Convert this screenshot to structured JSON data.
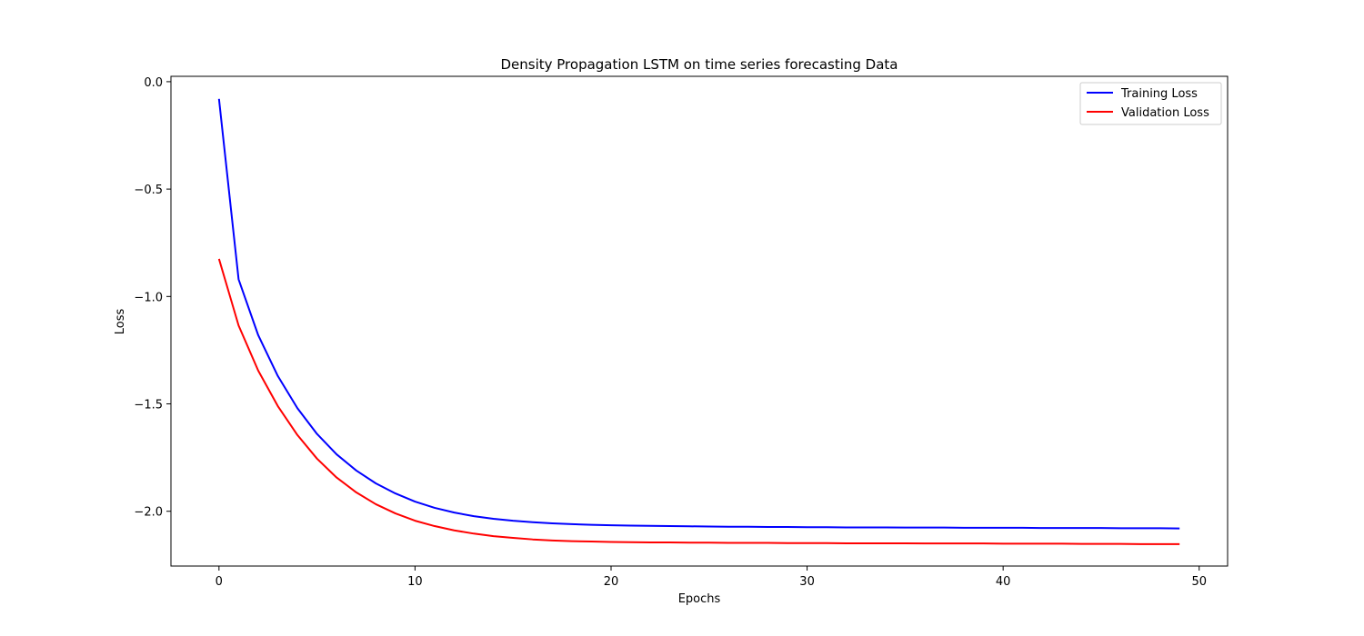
{
  "chart_data": {
    "type": "line",
    "title": "Density Propagation LSTM on time series forecasting Data",
    "xlabel": "Epochs",
    "ylabel": "Loss",
    "xlim": [
      -2.45,
      51.45
    ],
    "ylim": [
      -2.255,
      0.025
    ],
    "xticks": [
      0,
      10,
      20,
      30,
      40,
      50
    ],
    "yticks": [
      0.0,
      -0.5,
      -1.0,
      -1.5,
      -2.0
    ],
    "xtick_labels": [
      "0",
      "10",
      "20",
      "30",
      "40",
      "50"
    ],
    "ytick_labels": [
      "0.0",
      "−0.5",
      "−1.0",
      "−1.5",
      "−2.0"
    ],
    "grid": false,
    "legend_position": "top-right",
    "x": [
      0,
      1,
      2,
      3,
      4,
      5,
      6,
      7,
      8,
      9,
      10,
      11,
      12,
      13,
      14,
      15,
      16,
      17,
      18,
      19,
      20,
      21,
      22,
      23,
      24,
      25,
      26,
      27,
      28,
      29,
      30,
      31,
      32,
      33,
      34,
      35,
      36,
      37,
      38,
      39,
      40,
      41,
      42,
      43,
      44,
      45,
      46,
      47,
      48,
      49
    ],
    "series": [
      {
        "name": "Training Loss",
        "color": "#0000ff",
        "values": [
          -0.08,
          -0.92,
          -1.18,
          -1.37,
          -1.52,
          -1.64,
          -1.735,
          -1.81,
          -1.87,
          -1.917,
          -1.955,
          -1.984,
          -2.006,
          -2.023,
          -2.035,
          -2.044,
          -2.051,
          -2.056,
          -2.06,
          -2.063,
          -2.065,
          -2.067,
          -2.068,
          -2.069,
          -2.07,
          -2.071,
          -2.072,
          -2.072,
          -2.073,
          -2.073,
          -2.074,
          -2.074,
          -2.075,
          -2.075,
          -2.075,
          -2.076,
          -2.076,
          -2.076,
          -2.077,
          -2.077,
          -2.077,
          -2.077,
          -2.078,
          -2.078,
          -2.078,
          -2.078,
          -2.079,
          -2.079,
          -2.079,
          -2.08
        ]
      },
      {
        "name": "Validation Loss",
        "color": "#ff0000",
        "values": [
          -0.825,
          -1.135,
          -1.345,
          -1.51,
          -1.645,
          -1.755,
          -1.843,
          -1.912,
          -1.967,
          -2.01,
          -2.044,
          -2.069,
          -2.089,
          -2.104,
          -2.116,
          -2.124,
          -2.131,
          -2.136,
          -2.139,
          -2.141,
          -2.143,
          -2.144,
          -2.145,
          -2.145,
          -2.146,
          -2.146,
          -2.147,
          -2.147,
          -2.147,
          -2.148,
          -2.148,
          -2.148,
          -2.149,
          -2.149,
          -2.149,
          -2.149,
          -2.15,
          -2.15,
          -2.15,
          -2.15,
          -2.151,
          -2.151,
          -2.151,
          -2.151,
          -2.152,
          -2.152,
          -2.152,
          -2.153,
          -2.153,
          -2.153
        ]
      }
    ]
  }
}
